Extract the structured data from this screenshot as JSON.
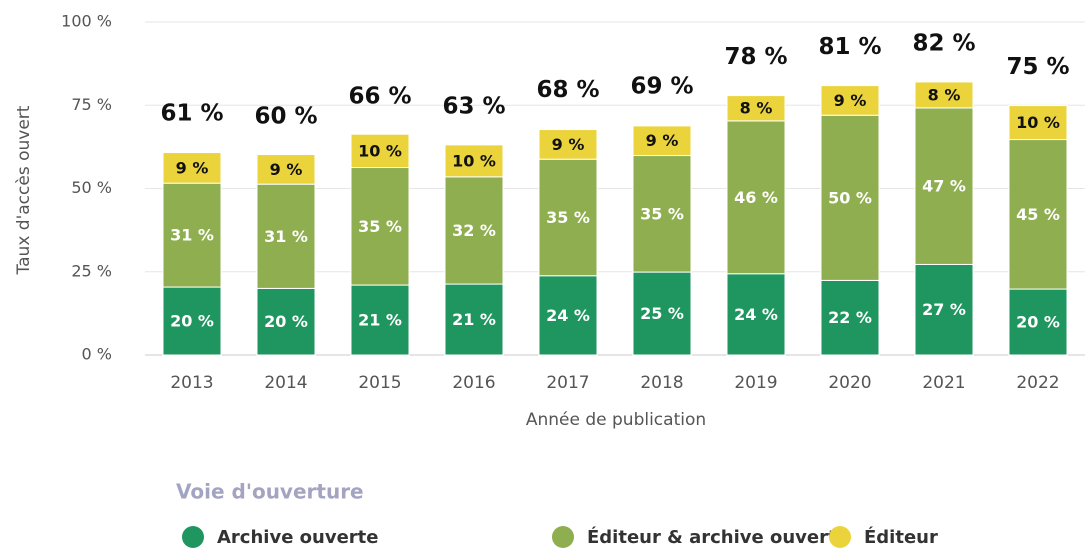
{
  "chart_data": {
    "type": "stacked_bar",
    "x_label": "Année de publication",
    "y_label": "Taux d'accès ouvert",
    "categories": [
      "2013",
      "2014",
      "2015",
      "2016",
      "2017",
      "2018",
      "2019",
      "2020",
      "2021",
      "2022"
    ],
    "series": [
      {
        "name": "Archive ouverte",
        "color": "#1f9660",
        "values": [
          20.4,
          20.0,
          21.0,
          21.3,
          23.8,
          24.9,
          24.4,
          22.4,
          27.2,
          19.8
        ],
        "value_labels": [
          "20 %",
          "20 %",
          "21 %",
          "21 %",
          "24 %",
          "25 %",
          "24 %",
          "22 %",
          "27 %",
          "20 %"
        ]
      },
      {
        "name": "Éditeur & archive ouverte",
        "color": "#8fae4f",
        "values": [
          31.2,
          31.3,
          35.3,
          32.2,
          35.0,
          35.0,
          45.9,
          49.6,
          47.0,
          44.9
        ],
        "value_labels": [
          "31 %",
          "31 %",
          "35 %",
          "32 %",
          "35 %",
          "35 %",
          "46 %",
          "50 %",
          "47 %",
          "45 %"
        ]
      },
      {
        "name": "Éditeur",
        "color": "#ebd43b",
        "values": [
          9.2,
          8.9,
          10.0,
          9.6,
          8.9,
          8.9,
          7.6,
          8.9,
          7.8,
          10.2
        ],
        "value_labels": [
          "9 %",
          "9 %",
          "10 %",
          "10 %",
          "9 %",
          "9 %",
          "8 %",
          "9 %",
          "8 %",
          "10 %"
        ]
      }
    ],
    "totals": [
      61,
      60,
      66,
      63,
      68,
      69,
      78,
      81,
      82,
      75
    ],
    "total_labels": [
      "61 %",
      "60 %",
      "66 %",
      "63 %",
      "68 %",
      "69 %",
      "78 %",
      "81 %",
      "82 %",
      "75 %"
    ],
    "ylim": [
      0,
      100
    ],
    "yticks": [
      {
        "value": 0,
        "label": "0 %"
      },
      {
        "value": 25,
        "label": "25 %"
      },
      {
        "value": 50,
        "label": "50 %"
      },
      {
        "value": 75,
        "label": "75 %"
      },
      {
        "value": 100,
        "label": "100 %"
      }
    ],
    "grid": true,
    "legend_title": "Voie d'ouverture",
    "legend_position": "bottom"
  }
}
